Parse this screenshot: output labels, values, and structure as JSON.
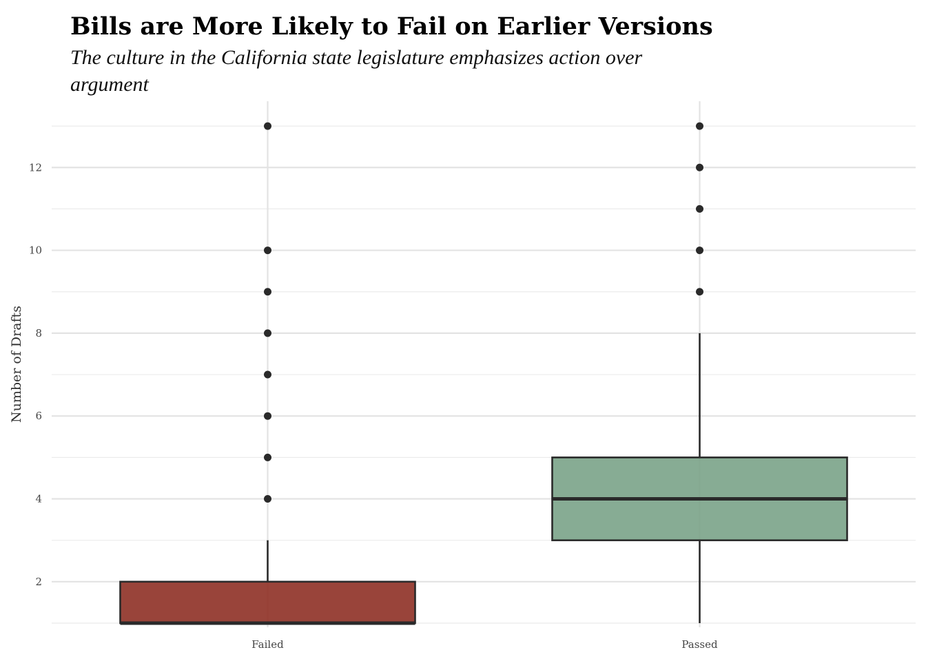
{
  "chart_data": {
    "type": "box",
    "title": "Bills are More Likely to Fail on Earlier Versions",
    "subtitle": "The culture in the California state legislature emphasizes action over argument",
    "xlabel": "",
    "ylabel": "Number of Drafts",
    "ylim": [
      0.9,
      13.6
    ],
    "yticks": [
      2,
      4,
      6,
      8,
      10,
      12
    ],
    "grid": true,
    "categories": [
      "Failed",
      "Passed"
    ],
    "boxes": [
      {
        "category": "Failed",
        "whisker_low": 1,
        "q1": 1,
        "median": 1,
        "q3": 2,
        "whisker_high": 3,
        "outliers": [
          4,
          5,
          6,
          7,
          8,
          9,
          10,
          13
        ],
        "color": "#8b2a1f"
      },
      {
        "category": "Passed",
        "whisker_low": 1,
        "q1": 3,
        "median": 4,
        "q3": 5,
        "whisker_high": 8,
        "outliers": [
          9,
          10,
          11,
          12,
          13
        ],
        "color": "#76a085"
      }
    ]
  }
}
